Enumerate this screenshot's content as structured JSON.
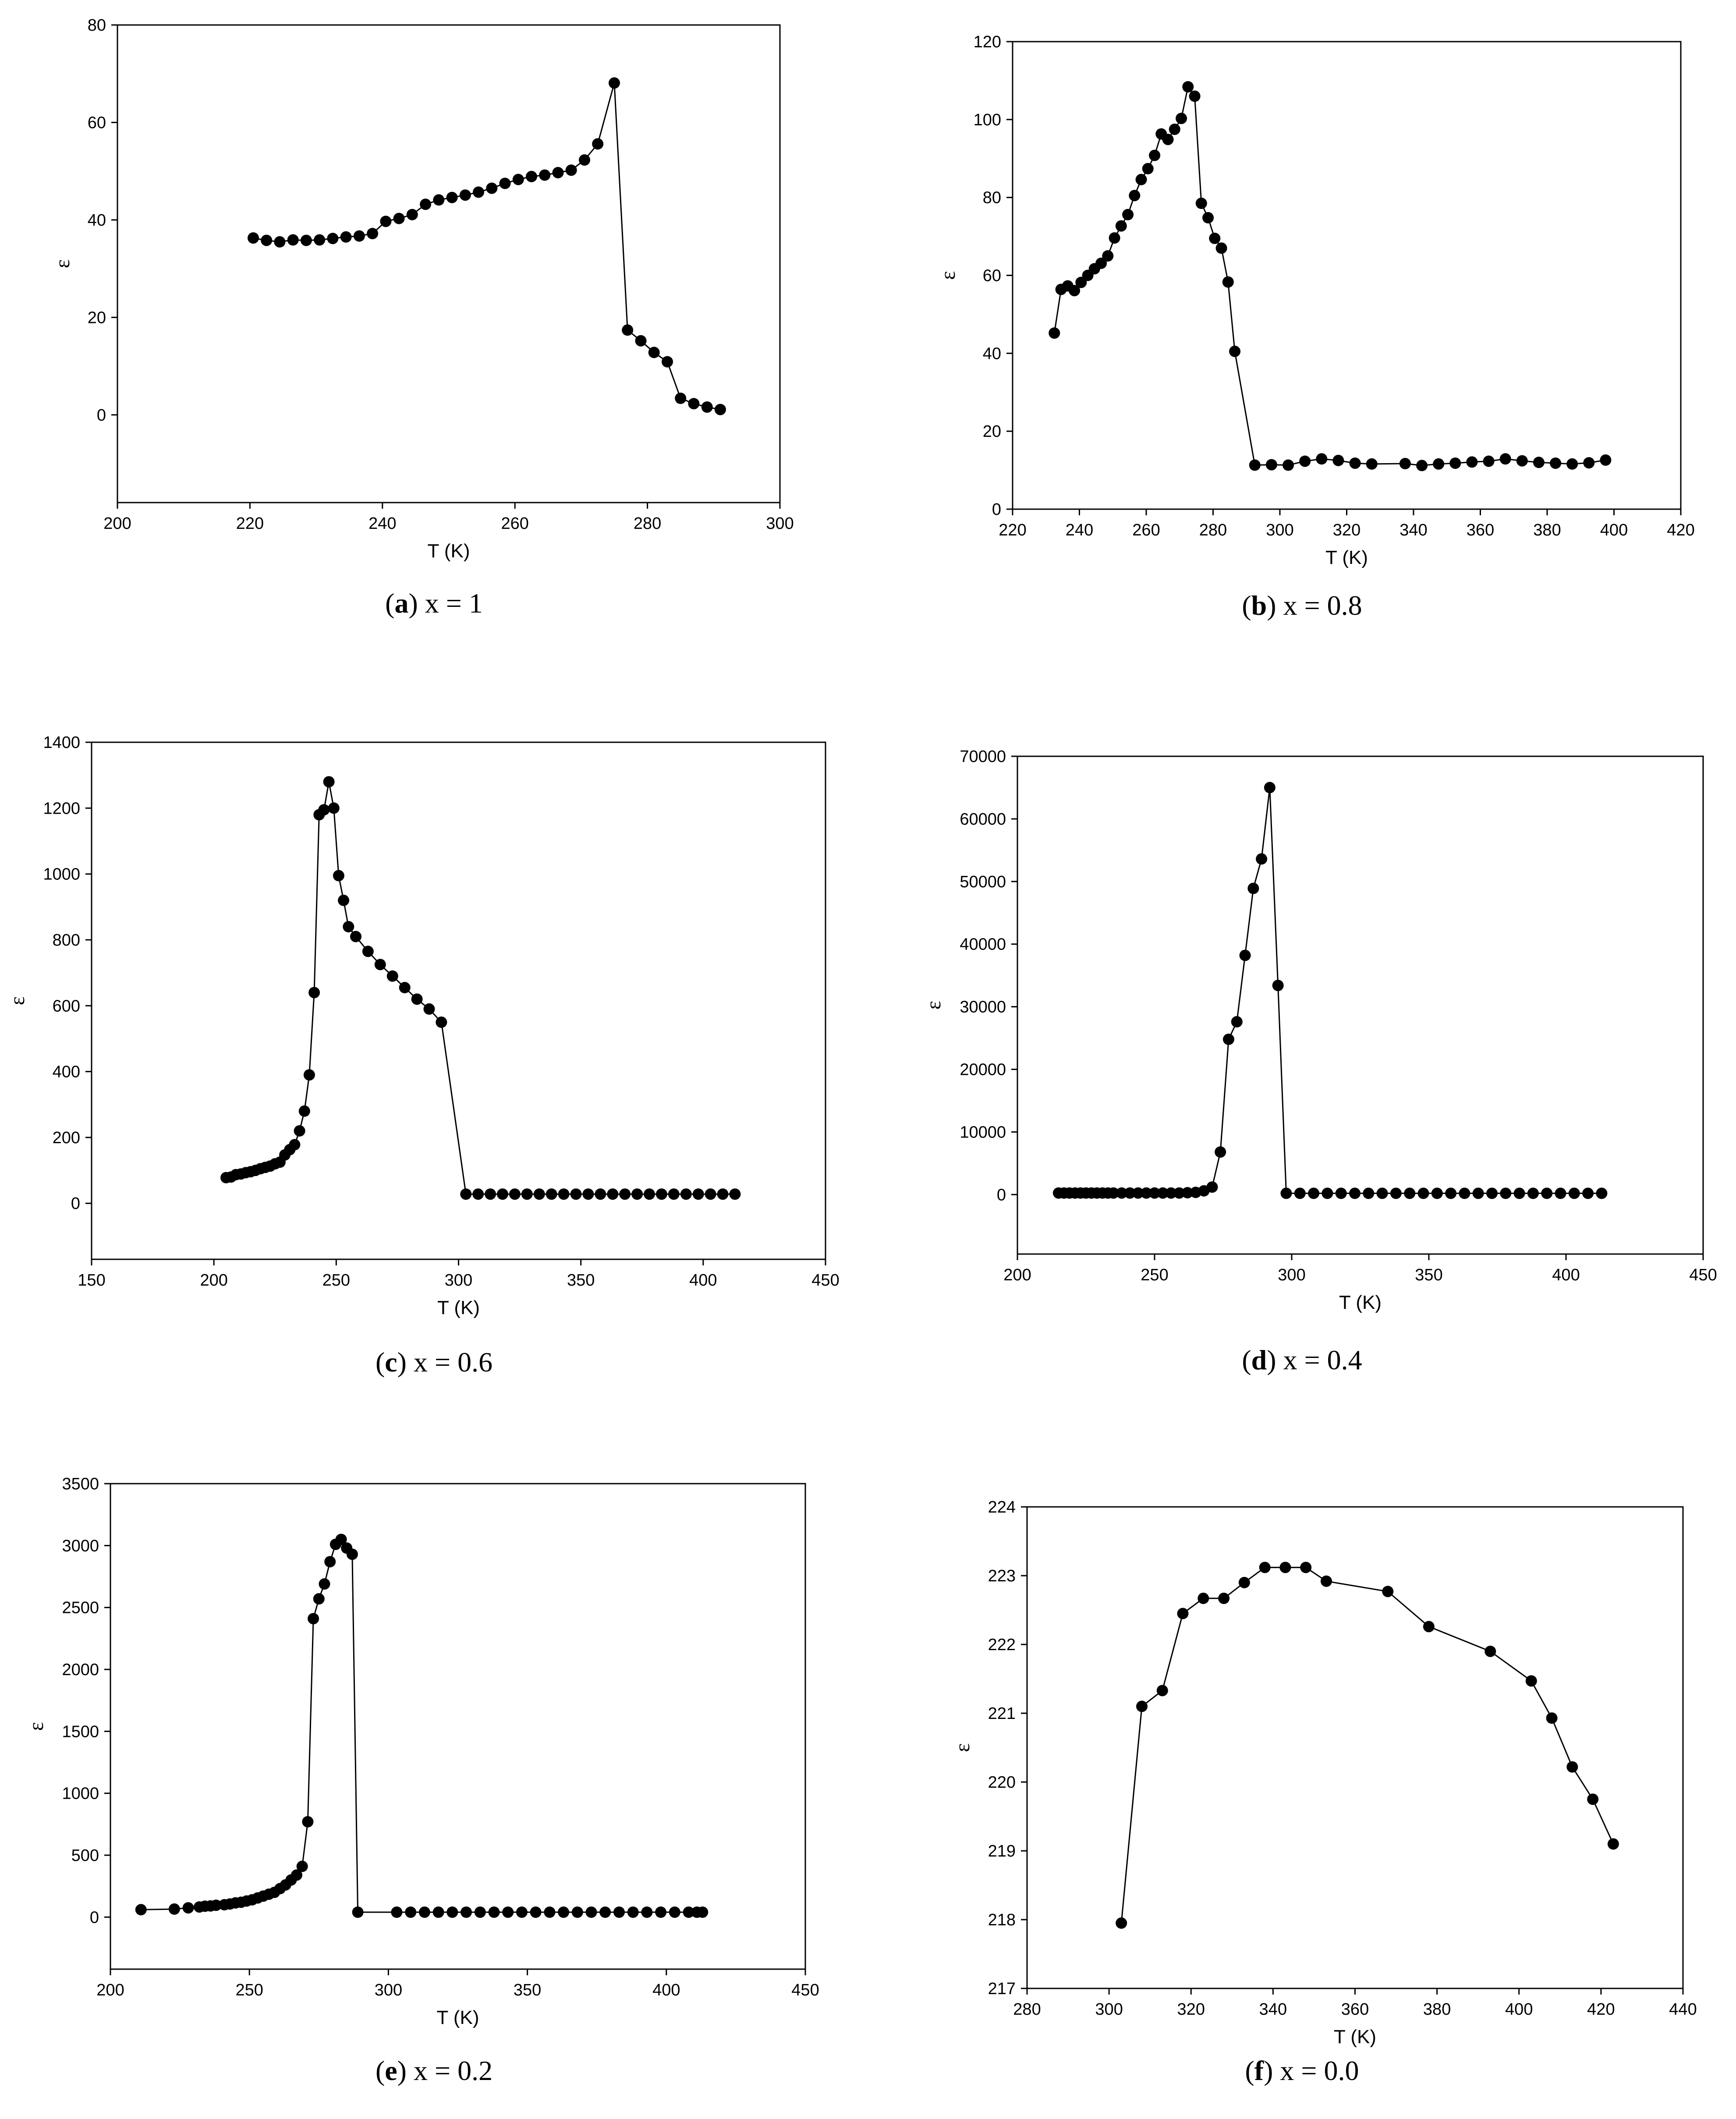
{
  "chart_data": [
    {
      "id": "a",
      "type": "line",
      "caption_letter": "a",
      "caption_text": " x = 1",
      "xlabel": "T (K)",
      "ylabel": "ε",
      "xlim": [
        200,
        300
      ],
      "ylim": [
        -18,
        80
      ],
      "xticks": [
        200,
        220,
        240,
        260,
        280,
        300
      ],
      "yticks": [
        0,
        20,
        40,
        60,
        80
      ],
      "series": [
        {
          "name": "x = 1",
          "x": [
            220.5,
            222.5,
            224.5,
            226.5,
            228.5,
            230.5,
            232.5,
            234.5,
            236.5,
            238.5,
            240.5,
            242.5,
            244.5,
            246.5,
            248.5,
            250.5,
            252.5,
            254.5,
            256.5,
            258.5,
            260.5,
            262.5,
            264.5,
            266.5,
            268.5,
            270.5,
            272.5,
            275,
            277,
            279,
            281,
            283,
            285,
            287,
            289,
            291
          ],
          "y": [
            36.3,
            35.8,
            35.5,
            35.9,
            35.8,
            35.9,
            36.2,
            36.5,
            36.7,
            37.2,
            39.7,
            40.3,
            41.1,
            43.2,
            44.1,
            44.6,
            45.1,
            45.7,
            46.5,
            47.5,
            48.3,
            48.9,
            49.2,
            49.7,
            50.2,
            52.3,
            55.6,
            68.1,
            17.4,
            15.2,
            12.8,
            10.9,
            3.4,
            2.3,
            1.6,
            1.1
          ]
        }
      ]
    },
    {
      "id": "b",
      "type": "line",
      "caption_letter": "b",
      "caption_text": " x = 0.8",
      "xlabel": "T (K)",
      "ylabel": "ε",
      "xlim": [
        220,
        420
      ],
      "ylim": [
        0,
        120
      ],
      "xticks": [
        220,
        240,
        260,
        280,
        300,
        320,
        340,
        360,
        380,
        400,
        420
      ],
      "yticks": [
        0,
        20,
        40,
        60,
        80,
        100,
        120
      ],
      "series": [
        {
          "name": "x = 0.8",
          "x": [
            232.5,
            234.5,
            236.5,
            238.5,
            240.5,
            242.5,
            244.5,
            246.5,
            248.5,
            250.5,
            252.5,
            254.5,
            256.5,
            258.5,
            260.5,
            262.5,
            264.5,
            266.5,
            268.5,
            270.5,
            272.5,
            274.5,
            276.5,
            278.5,
            280.5,
            282.5,
            284.5,
            286.5,
            292.5,
            297.5,
            302.5,
            307.5,
            312.5,
            317.5,
            322.5,
            327.5,
            337.5,
            342.5,
            347.5,
            352.5,
            357.5,
            362.5,
            367.5,
            372.5,
            377.5,
            382.5,
            387.5,
            392.5,
            397.5
          ],
          "y": [
            45.2,
            56.4,
            57.3,
            56.1,
            58.2,
            60.0,
            61.7,
            63.1,
            65.0,
            69.6,
            72.7,
            75.6,
            80.5,
            84.6,
            87.4,
            90.8,
            96.3,
            94.9,
            97.5,
            100.3,
            108.4,
            106.0,
            78.5,
            74.8,
            69.5,
            67.0,
            58.3,
            40.5,
            11.3,
            11.4,
            11.3,
            12.3,
            12.9,
            12.5,
            11.8,
            11.6,
            11.7,
            11.2,
            11.6,
            11.8,
            12.1,
            12.3,
            12.9,
            12.4,
            12.0,
            11.8,
            11.6,
            11.9,
            12.6
          ]
        }
      ]
    },
    {
      "id": "c",
      "type": "line",
      "caption_letter": "c",
      "caption_text": " x = 0.6",
      "xlabel": "T (K)",
      "ylabel": "ε",
      "xlim": [
        150,
        450
      ],
      "ylim": [
        -170,
        1400
      ],
      "xticks": [
        150,
        200,
        250,
        300,
        350,
        400,
        450
      ],
      "yticks": [
        0,
        200,
        400,
        600,
        800,
        1000,
        1200,
        1400
      ],
      "series": [
        {
          "name": "x = 0.6",
          "x": [
            205,
            207,
            209,
            211,
            213,
            215,
            217,
            219,
            221,
            223,
            225,
            227,
            229,
            231,
            233,
            235,
            237,
            239,
            241,
            243,
            245,
            247,
            249,
            251,
            253,
            255,
            258,
            263,
            268,
            273,
            278,
            283,
            288,
            293,
            303,
            308,
            313,
            318,
            323,
            328,
            333,
            338,
            343,
            348,
            353,
            358,
            363,
            368,
            373,
            378,
            383,
            388,
            393,
            398,
            403,
            408,
            413
          ],
          "y": [
            78,
            80,
            87,
            89,
            93,
            96,
            100,
            105,
            109,
            113,
            120,
            125,
            147,
            163,
            178,
            220,
            280,
            390,
            640,
            1180,
            1195,
            1280,
            1200,
            995,
            920,
            840,
            810,
            765,
            725,
            690,
            655,
            620,
            590,
            550,
            28,
            28,
            28,
            28,
            28,
            28,
            28,
            28,
            28,
            28,
            28,
            28,
            28,
            28,
            28,
            28,
            28,
            28,
            28,
            28,
            28,
            28,
            28
          ]
        }
      ]
    },
    {
      "id": "d",
      "type": "line",
      "caption_letter": "d",
      "caption_text": " x = 0.4",
      "xlabel": "T (K)",
      "ylabel": "ε",
      "xlim": [
        200,
        450
      ],
      "ylim": [
        -9500,
        70000
      ],
      "xticks": [
        200,
        250,
        300,
        350,
        400,
        450
      ],
      "yticks": [
        0,
        10000,
        20000,
        30000,
        40000,
        50000,
        60000,
        70000
      ],
      "series": [
        {
          "name": "x = 0.4",
          "x": [
            215,
            217,
            219,
            221,
            223,
            225,
            227,
            229,
            231,
            233,
            235,
            238,
            241,
            244,
            247,
            250,
            253,
            256,
            259,
            262,
            265,
            268,
            271,
            274,
            277,
            280,
            283,
            286,
            289,
            292,
            295,
            298,
            303,
            308,
            313,
            318,
            323,
            328,
            333,
            338,
            343,
            348,
            353,
            358,
            363,
            368,
            373,
            378,
            383,
            388,
            393,
            398,
            403,
            408,
            413
          ],
          "y": [
            250,
            250,
            250,
            250,
            250,
            250,
            250,
            250,
            250,
            250,
            250,
            250,
            250,
            250,
            250,
            250,
            250,
            250,
            250,
            300,
            350,
            600,
            1200,
            6800,
            24800,
            27600,
            38200,
            48900,
            53600,
            65000,
            33400,
            200,
            200,
            200,
            200,
            200,
            200,
            200,
            200,
            200,
            200,
            200,
            200,
            200,
            200,
            200,
            200,
            200,
            200,
            200,
            200,
            200,
            200,
            200,
            200
          ]
        }
      ]
    },
    {
      "id": "e",
      "type": "line",
      "caption_letter": "e",
      "caption_text": " x = 0.2",
      "xlabel": "T (K)",
      "ylabel": "ε",
      "xlim": [
        200,
        450
      ],
      "ylim": [
        -420,
        3500
      ],
      "xticks": [
        200,
        250,
        300,
        350,
        400,
        450
      ],
      "yticks": [
        0,
        500,
        1000,
        1500,
        2000,
        2500,
        3000,
        3500
      ],
      "series": [
        {
          "name": "x = 0.2",
          "x": [
            211,
            223,
            228,
            232,
            234,
            236,
            238,
            241,
            243,
            245,
            247,
            249,
            251,
            253,
            255,
            257,
            259,
            261,
            263,
            265,
            267,
            269,
            271,
            273,
            275,
            277,
            279,
            281,
            283,
            285,
            287,
            289,
            303,
            308,
            313,
            318,
            323,
            328,
            333,
            338,
            343,
            348,
            353,
            358,
            363,
            368,
            373,
            378,
            383,
            388,
            393,
            398,
            403,
            408,
            411,
            413
          ],
          "y": [
            60,
            65,
            75,
            82,
            88,
            90,
            96,
            100,
            106,
            115,
            120,
            130,
            140,
            155,
            170,
            185,
            200,
            230,
            260,
            300,
            340,
            410,
            770,
            2410,
            2570,
            2690,
            2870,
            3010,
            3050,
            2980,
            2930,
            40,
            40,
            40,
            40,
            40,
            40,
            40,
            40,
            40,
            40,
            40,
            40,
            40,
            40,
            40,
            40,
            40,
            40,
            40,
            40,
            40,
            40,
            40,
            40,
            40
          ]
        }
      ]
    },
    {
      "id": "f",
      "type": "line",
      "caption_letter": "f",
      "caption_text": " x = 0.0",
      "xlabel": "T (K)",
      "ylabel": "ε",
      "xlim": [
        280,
        440
      ],
      "ylim": [
        217,
        224
      ],
      "xticks": [
        280,
        300,
        320,
        340,
        360,
        380,
        400,
        420,
        440
      ],
      "yticks": [
        217,
        218,
        219,
        220,
        221,
        222,
        223,
        224
      ],
      "series": [
        {
          "name": "x = 0.0",
          "x": [
            303,
            308,
            313,
            318,
            323,
            328,
            333,
            338,
            343,
            348,
            353,
            368,
            378,
            393,
            403,
            408,
            413,
            418,
            423
          ],
          "y": [
            217.95,
            221.1,
            221.33,
            222.45,
            222.67,
            222.67,
            222.9,
            223.12,
            223.12,
            223.12,
            222.92,
            222.77,
            222.26,
            221.9,
            221.47,
            220.93,
            220.22,
            219.75,
            219.1
          ]
        }
      ]
    }
  ]
}
